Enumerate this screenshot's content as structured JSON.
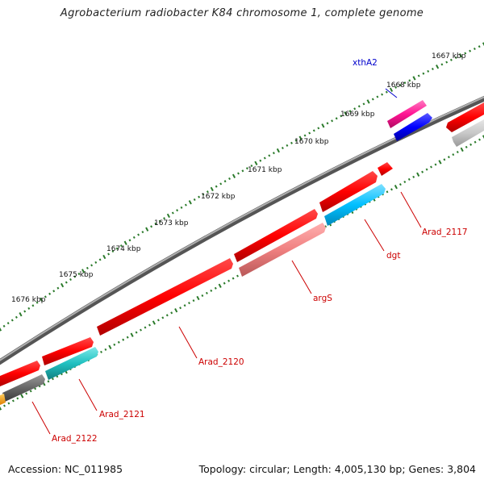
{
  "title": "Agrobacterium radiobacter K84 chromosome 1, complete genome",
  "footer": {
    "accession": "Accession: NC_011985",
    "stats": "Topology: circular; Length: 4,005,130 bp; Genes: 3,804"
  },
  "ticks": [
    "1667 kbp",
    "1668 kbp",
    "1669 kbp",
    "1670 kbp",
    "1671 kbp",
    "1672 kbp",
    "1673 kbp",
    "1674 kbp",
    "1675 kbp",
    "1676 kbp"
  ],
  "gene_labels": [
    {
      "text": "xthA2",
      "color": "#0000cc"
    },
    {
      "text": "Arad_2117",
      "color": "#cc0000"
    },
    {
      "text": "dgt",
      "color": "#cc0000"
    },
    {
      "text": "argS",
      "color": "#cc0000"
    },
    {
      "text": "Arad_2120",
      "color": "#cc0000"
    },
    {
      "text": "Arad_2121",
      "color": "#cc0000"
    },
    {
      "text": "Arad_2122",
      "color": "#cc0000"
    }
  ],
  "colors": {
    "backbone": "#808080",
    "tick_dots": "#2a7a2a",
    "cds_forward": "#ff0000",
    "cds_reverse_blue": "#00bfff",
    "cds_reverse_teal": "#20c0c0",
    "cds_gray": "#666666",
    "cds_pink": "#f08080",
    "cds_magenta": "#ff1493",
    "cds_blue": "#0000ff"
  }
}
